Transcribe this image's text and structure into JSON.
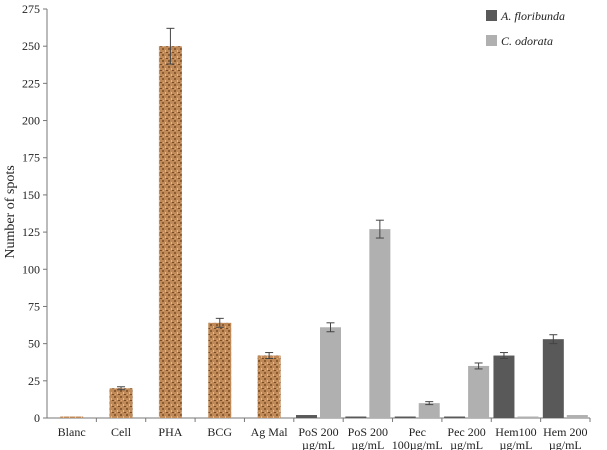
{
  "chart_data": {
    "type": "bar",
    "title": "",
    "xlabel": "",
    "ylabel": "Number of spots",
    "ylim": [
      0,
      275
    ],
    "yticks": [
      0,
      25,
      50,
      75,
      100,
      125,
      150,
      175,
      200,
      225,
      250,
      275
    ],
    "grid": false,
    "legend_position": "top-right",
    "categories": [
      {
        "lines": [
          "Blanc"
        ]
      },
      {
        "lines": [
          "Cell"
        ]
      },
      {
        "lines": [
          "PHA"
        ]
      },
      {
        "lines": [
          "BCG"
        ]
      },
      {
        "lines": [
          "Ag Mal"
        ]
      },
      {
        "lines": [
          "PoS 200",
          "µg/mL"
        ]
      },
      {
        "lines": [
          "PoS 200",
          "µg/mL"
        ]
      },
      {
        "lines": [
          "Pec",
          "100µg/mL"
        ]
      },
      {
        "lines": [
          "Pec 200",
          "µg/mL"
        ]
      },
      {
        "lines": [
          "Hem100",
          "µg/mL"
        ]
      },
      {
        "lines": [
          "Hem 200",
          "µg/mL"
        ]
      }
    ],
    "controls": {
      "color": "#c08a58",
      "values": [
        1,
        20,
        250,
        64,
        42
      ],
      "errors": [
        0,
        1,
        12,
        3,
        2
      ]
    },
    "series": [
      {
        "name": "A. floribunda",
        "color": "#595959",
        "values": [
          null,
          null,
          null,
          null,
          null,
          2,
          1,
          1,
          1,
          42,
          53
        ],
        "errors": [
          null,
          null,
          null,
          null,
          null,
          0,
          0,
          0,
          0,
          2,
          3
        ]
      },
      {
        "name": "C. odorata",
        "color": "#b0b0b0",
        "values": [
          null,
          null,
          null,
          null,
          null,
          61,
          127,
          10,
          35,
          1,
          2
        ],
        "errors": [
          null,
          null,
          null,
          null,
          null,
          3,
          6,
          1,
          2,
          0,
          0
        ]
      }
    ]
  }
}
